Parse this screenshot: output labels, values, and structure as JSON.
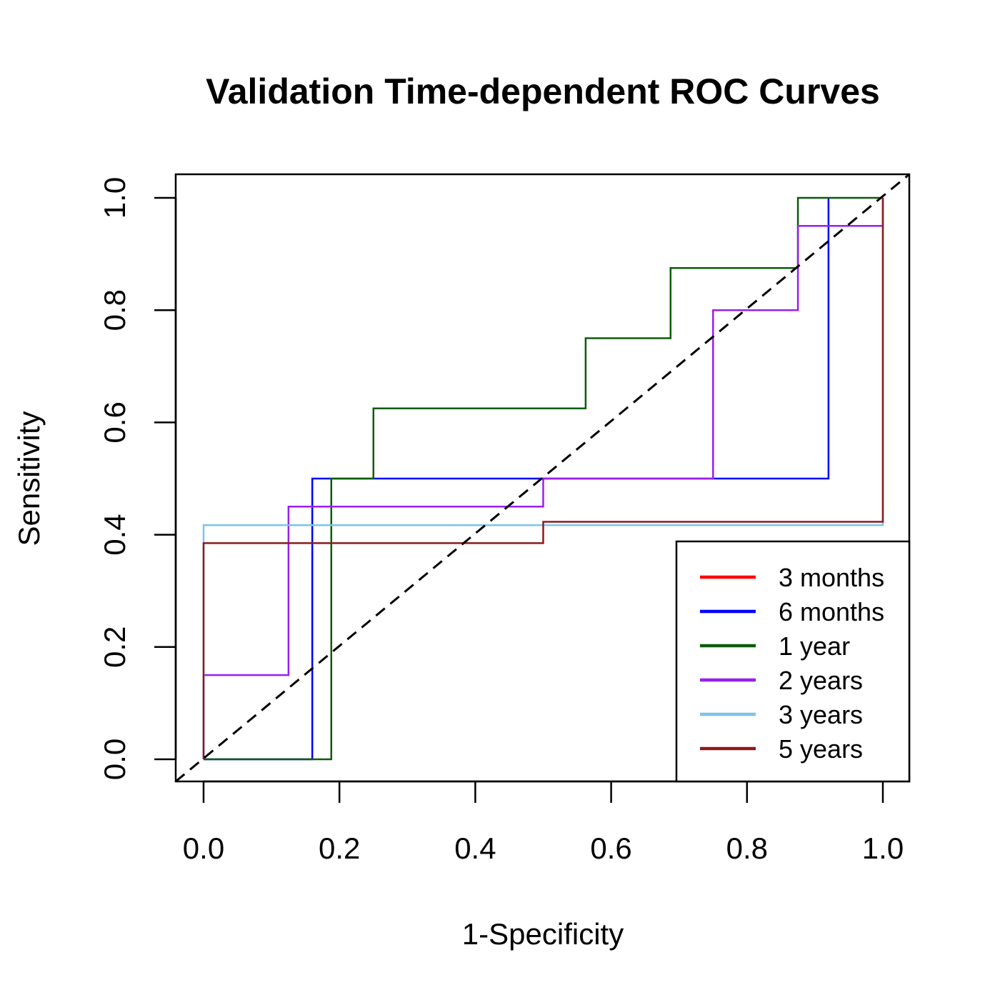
{
  "chart_data": {
    "type": "line",
    "title": "Validation Time-dependent ROC Curves",
    "xlabel": "1-Specificity",
    "ylabel": "Sensitivity",
    "xlim": [
      0,
      1
    ],
    "ylim": [
      0,
      1
    ],
    "x_ticks": [
      "0.0",
      "0.2",
      "0.4",
      "0.6",
      "0.8",
      "1.0"
    ],
    "y_ticks": [
      "0.0",
      "0.2",
      "0.4",
      "0.6",
      "0.8",
      "1.0"
    ],
    "grid": false,
    "legend_position": "bottom-right",
    "reference_line": {
      "from": [
        0,
        0
      ],
      "to": [
        1,
        1
      ],
      "style": "dashed",
      "color": "#000000"
    },
    "series": [
      {
        "name": "3 months",
        "color": "#ff0000",
        "points": []
      },
      {
        "name": "6 months",
        "color": "#0000ff",
        "points": [
          [
            0,
            0
          ],
          [
            0.16,
            0
          ],
          [
            0.16,
            0.5
          ],
          [
            0.92,
            0.5
          ],
          [
            0.92,
            1.0
          ]
        ]
      },
      {
        "name": "1 year",
        "color": "#0b5c0b",
        "points": [
          [
            0,
            0
          ],
          [
            0.188,
            0
          ],
          [
            0.188,
            0.5
          ],
          [
            0.25,
            0.5
          ],
          [
            0.25,
            0.625
          ],
          [
            0.5625,
            0.625
          ],
          [
            0.5625,
            0.75
          ],
          [
            0.6875,
            0.75
          ],
          [
            0.6875,
            0.875
          ],
          [
            0.875,
            0.875
          ],
          [
            0.875,
            1.0
          ],
          [
            1.0,
            1.0
          ]
        ]
      },
      {
        "name": "2 years",
        "color": "#9b1ef0",
        "points": [
          [
            0,
            0
          ],
          [
            0,
            0.15
          ],
          [
            0.125,
            0.15
          ],
          [
            0.125,
            0.45
          ],
          [
            0.5,
            0.45
          ],
          [
            0.5,
            0.5
          ],
          [
            0.75,
            0.5
          ],
          [
            0.75,
            0.8
          ],
          [
            0.875,
            0.8
          ],
          [
            0.875,
            0.95
          ],
          [
            1.0,
            0.95
          ],
          [
            1.0,
            1.0
          ]
        ]
      },
      {
        "name": "3 years",
        "color": "#7ec4ea",
        "points": [
          [
            0,
            0
          ],
          [
            0,
            0.417
          ],
          [
            1.0,
            0.417
          ],
          [
            1.0,
            1.0
          ]
        ]
      },
      {
        "name": "5 years",
        "color": "#8b1a1a",
        "points": [
          [
            0,
            0
          ],
          [
            0,
            0.385
          ],
          [
            0.5,
            0.385
          ],
          [
            0.5,
            0.423
          ],
          [
            1.0,
            0.423
          ],
          [
            1.0,
            1.0
          ]
        ]
      }
    ]
  }
}
